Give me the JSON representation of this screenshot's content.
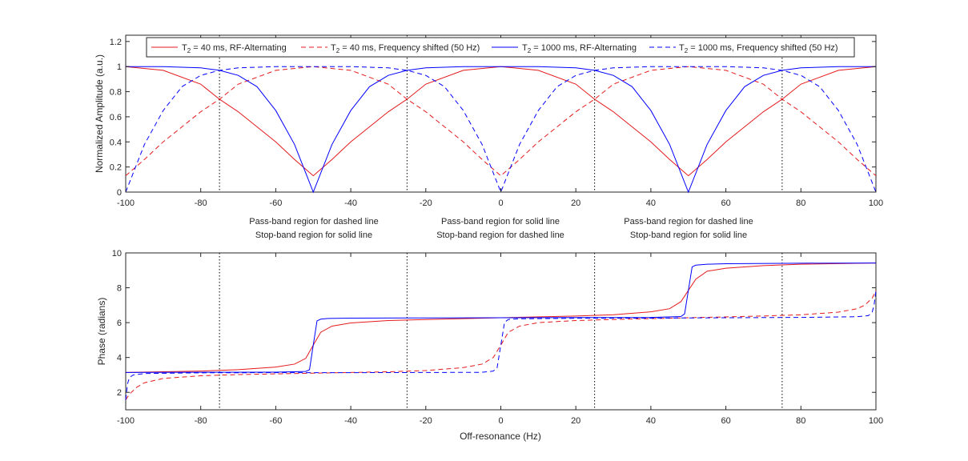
{
  "chart_data": [
    {
      "type": "line",
      "panel": "top",
      "title": "",
      "xlabel": "",
      "ylabel": "Normalized Amplitude (a.u.)",
      "xlim": [
        -100,
        100
      ],
      "ylim": [
        0,
        1.25
      ],
      "xticks": [
        -100,
        -80,
        -60,
        -40,
        -20,
        0,
        20,
        40,
        60,
        80,
        100
      ],
      "yticks": [
        0,
        0.2,
        0.4,
        0.6,
        0.8,
        1,
        1.2
      ],
      "ytick_labels": [
        "0",
        "0.2",
        "0.4",
        "0.6",
        "0.8",
        "1",
        "1.2"
      ],
      "grid": false,
      "legend_position": "top",
      "legend": [
        {
          "prefix": "T",
          "sub": "2",
          "suffix": " = 40 ms, RF-Alternating",
          "color": "#e41a1c",
          "dash": "solid"
        },
        {
          "prefix": "T",
          "sub": "2",
          "suffix": " = 40 ms, Frequency shifted (50 Hz)",
          "color": "#e41a1c",
          "dash": "dashed"
        },
        {
          "prefix": "T",
          "sub": "2",
          "suffix": " = 1000 ms, RF-Alternating",
          "color": "#0000ff",
          "dash": "solid"
        },
        {
          "prefix": "T",
          "sub": "2",
          "suffix": " = 1000 ms, Frequency shifted (50 Hz)",
          "color": "#0000ff",
          "dash": "dashed"
        }
      ],
      "vlines": [
        -75,
        -25,
        25,
        75
      ],
      "series": [
        {
          "name": "T2 = 40 ms, RF-Alternating",
          "color": "#e41a1c",
          "dash": "solid",
          "x": [
            -100,
            -90,
            -80,
            -75,
            -70,
            -60,
            -55,
            -50,
            -45,
            -40,
            -30,
            -25,
            -20,
            -10,
            0,
            10,
            20,
            25,
            30,
            40,
            45,
            50,
            55,
            60,
            70,
            75,
            80,
            90,
            100
          ],
          "y": [
            1.0,
            0.97,
            0.86,
            0.74,
            0.64,
            0.4,
            0.26,
            0.13,
            0.26,
            0.4,
            0.64,
            0.74,
            0.86,
            0.97,
            1.0,
            0.97,
            0.86,
            0.74,
            0.64,
            0.4,
            0.26,
            0.13,
            0.26,
            0.4,
            0.64,
            0.74,
            0.86,
            0.97,
            1.0
          ]
        },
        {
          "name": "T2 = 40 ms, Frequency shifted (50 Hz)",
          "color": "#e41a1c",
          "dash": "dashed",
          "x": [
            -100,
            -95,
            -90,
            -80,
            -75,
            -70,
            -60,
            -50,
            -40,
            -30,
            -25,
            -20,
            -10,
            -5,
            0,
            5,
            10,
            20,
            25,
            30,
            40,
            50,
            60,
            70,
            75,
            80,
            90,
            95,
            100
          ],
          "y": [
            0.13,
            0.26,
            0.4,
            0.64,
            0.74,
            0.86,
            0.97,
            1.0,
            0.97,
            0.86,
            0.74,
            0.64,
            0.4,
            0.26,
            0.13,
            0.26,
            0.4,
            0.64,
            0.74,
            0.86,
            0.97,
            1.0,
            0.97,
            0.86,
            0.74,
            0.64,
            0.4,
            0.26,
            0.13
          ]
        },
        {
          "name": "T2 = 1000 ms, RF-Alternating",
          "color": "#0000ff",
          "dash": "solid",
          "x": [
            -100,
            -90,
            -80,
            -75,
            -70,
            -65,
            -60,
            -55,
            -50,
            -45,
            -40,
            -35,
            -30,
            -25,
            -20,
            -10,
            0,
            10,
            20,
            25,
            30,
            35,
            40,
            45,
            50,
            55,
            60,
            65,
            70,
            75,
            80,
            90,
            100
          ],
          "y": [
            1.0,
            1.0,
            0.99,
            0.97,
            0.93,
            0.84,
            0.65,
            0.38,
            0.0,
            0.38,
            0.65,
            0.84,
            0.93,
            0.97,
            0.99,
            1.0,
            1.0,
            1.0,
            0.99,
            0.97,
            0.93,
            0.84,
            0.65,
            0.38,
            0.0,
            0.38,
            0.65,
            0.84,
            0.93,
            0.97,
            0.99,
            1.0,
            1.0
          ]
        },
        {
          "name": "T2 = 1000 ms, Frequency shifted (50 Hz)",
          "color": "#0000ff",
          "dash": "dashed",
          "x": [
            -100,
            -95,
            -90,
            -85,
            -80,
            -75,
            -70,
            -60,
            -50,
            -40,
            -30,
            -25,
            -20,
            -15,
            -10,
            -5,
            0,
            5,
            10,
            15,
            20,
            25,
            30,
            40,
            50,
            60,
            70,
            75,
            80,
            85,
            90,
            95,
            100
          ],
          "y": [
            0.0,
            0.38,
            0.65,
            0.84,
            0.93,
            0.97,
            0.99,
            1.0,
            1.0,
            1.0,
            0.99,
            0.97,
            0.93,
            0.84,
            0.65,
            0.38,
            0.0,
            0.38,
            0.65,
            0.84,
            0.93,
            0.97,
            0.99,
            1.0,
            1.0,
            1.0,
            0.99,
            0.97,
            0.93,
            0.84,
            0.65,
            0.38,
            0.0
          ]
        }
      ]
    },
    {
      "type": "line",
      "panel": "bottom",
      "title": "",
      "xlabel": "Off-resonance (Hz)",
      "ylabel": "Phase (radians)",
      "xlim": [
        -100,
        100
      ],
      "ylim": [
        1,
        10
      ],
      "xticks": [
        -100,
        -80,
        -60,
        -40,
        -20,
        0,
        20,
        40,
        60,
        80,
        100
      ],
      "yticks": [
        2,
        4,
        6,
        8,
        10
      ],
      "ytick_labels": [
        "2",
        "4",
        "6",
        "8",
        "10"
      ],
      "grid": false,
      "vlines": [
        -75,
        -25,
        25,
        75
      ],
      "series": [
        {
          "name": "T2 = 40 ms, RF-Alternating",
          "color": "#e41a1c",
          "dash": "solid",
          "x": [
            -100,
            -80,
            -70,
            -60,
            -55,
            -52,
            -50,
            -48,
            -45,
            -40,
            -30,
            -20,
            0,
            20,
            30,
            40,
            45,
            48,
            50,
            52,
            55,
            60,
            70,
            80,
            100
          ],
          "y": [
            3.14,
            3.22,
            3.3,
            3.45,
            3.62,
            3.95,
            4.71,
            5.45,
            5.8,
            5.98,
            6.12,
            6.18,
            6.28,
            6.38,
            6.45,
            6.62,
            6.8,
            7.2,
            7.85,
            8.5,
            8.95,
            9.12,
            9.27,
            9.35,
            9.42
          ]
        },
        {
          "name": "T2 = 40 ms, Frequency shifted (50 Hz)",
          "color": "#e41a1c",
          "dash": "dashed",
          "x": [
            -100,
            -99,
            -97,
            -95,
            -90,
            -80,
            -70,
            -50,
            -30,
            -20,
            -10,
            -5,
            -2,
            0,
            2,
            5,
            10,
            20,
            30,
            50,
            70,
            80,
            90,
            95,
            97,
            99,
            100
          ],
          "y": [
            1.57,
            1.9,
            2.3,
            2.55,
            2.8,
            2.95,
            3.02,
            3.1,
            3.18,
            3.25,
            3.42,
            3.62,
            4.0,
            4.71,
            5.45,
            5.8,
            6.0,
            6.12,
            6.18,
            6.28,
            6.38,
            6.45,
            6.6,
            6.8,
            7.0,
            7.4,
            7.85
          ]
        },
        {
          "name": "T2 = 1000 ms, RF-Alternating",
          "color": "#0000ff",
          "dash": "solid",
          "x": [
            -100,
            -80,
            -60,
            -52,
            -51,
            -50,
            -49,
            -48,
            -46,
            -40,
            -20,
            0,
            20,
            40,
            48,
            49,
            50,
            51,
            52,
            55,
            60,
            80,
            100
          ],
          "y": [
            3.14,
            3.15,
            3.16,
            3.2,
            3.3,
            4.71,
            6.1,
            6.2,
            6.24,
            6.26,
            6.27,
            6.28,
            6.29,
            6.3,
            6.35,
            6.5,
            7.85,
            9.2,
            9.3,
            9.35,
            9.38,
            9.41,
            9.42
          ]
        },
        {
          "name": "T2 = 1000 ms, Frequency shifted (50 Hz)",
          "color": "#0000ff",
          "dash": "dashed",
          "x": [
            -100,
            -99.5,
            -99,
            -98,
            -95,
            -80,
            -60,
            -40,
            -20,
            -5,
            -2,
            -1,
            0,
            1,
            2,
            5,
            20,
            40,
            60,
            80,
            95,
            98,
            99,
            99.5,
            100
          ],
          "y": [
            1.57,
            2.5,
            2.85,
            3.0,
            3.08,
            3.12,
            3.13,
            3.13,
            3.14,
            3.15,
            3.22,
            3.4,
            4.71,
            6.02,
            6.18,
            6.22,
            6.25,
            6.26,
            6.28,
            6.3,
            6.34,
            6.4,
            6.6,
            7.0,
            7.85
          ]
        }
      ]
    }
  ],
  "annotations": {
    "left_line1": "Pass-band region for dashed line",
    "left_line2": "Stop-band region for solid line",
    "center_line1": "Pass-band region for solid line",
    "center_line2": "Stop-band region for dashed line",
    "right_line1": "Pass-band region for dashed line",
    "right_line2": "Stop-band region for solid line"
  }
}
